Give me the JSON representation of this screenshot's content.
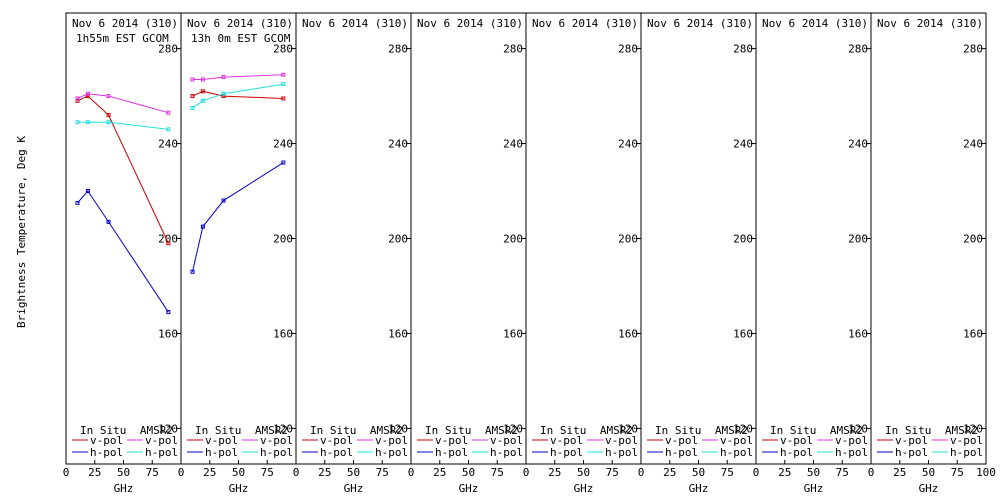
{
  "chart_data": {
    "type": "line",
    "ylabel": "Brightness Temperature, Deg K",
    "xlabel": "GHz",
    "xlim": [
      0,
      100
    ],
    "ylim": [
      105,
      295
    ],
    "x_ticks": [
      0,
      25,
      50,
      75
    ],
    "x_tick_last": "100",
    "y_ticks": [
      120,
      160,
      200,
      240,
      280
    ],
    "colors": {
      "insitu_v": "#cc0000",
      "insitu_h": "#0000cc",
      "amsr2_v": "#dd33dd",
      "amsr2_h": "#22dddd"
    },
    "legend_labels": {
      "insitu": "In Situ",
      "amsr2": "AMSR2",
      "vpol": "v-pol",
      "hpol": "h-pol"
    },
    "panels": [
      {
        "title": "Nov 6 2014 (310)",
        "subtitle": "1h55m EST GCOM",
        "series": [
          {
            "key": "insitu_v",
            "x": [
              10,
              19,
              37,
              89
            ],
            "y": [
              258,
              260,
              252,
              198
            ]
          },
          {
            "key": "insitu_h",
            "x": [
              10,
              19,
              37,
              89
            ],
            "y": [
              215,
              220,
              207,
              169
            ]
          },
          {
            "key": "amsr2_v",
            "x": [
              10,
              19,
              37,
              89
            ],
            "y": [
              259,
              261,
              260,
              253
            ]
          },
          {
            "key": "amsr2_h",
            "x": [
              10,
              19,
              37,
              89
            ],
            "y": [
              249,
              249,
              249,
              246
            ]
          }
        ]
      },
      {
        "title": "Nov 6 2014 (310)",
        "subtitle": "13h 0m EST GCOM",
        "series": [
          {
            "key": "insitu_v",
            "x": [
              10,
              19,
              37,
              89
            ],
            "y": [
              260,
              262,
              260,
              259
            ]
          },
          {
            "key": "insitu_h",
            "x": [
              10,
              19,
              37,
              89
            ],
            "y": [
              186,
              205,
              216,
              232
            ]
          },
          {
            "key": "amsr2_v",
            "x": [
              10,
              19,
              37,
              89
            ],
            "y": [
              267,
              267,
              268,
              269
            ]
          },
          {
            "key": "amsr2_h",
            "x": [
              10,
              19,
              37,
              89
            ],
            "y": [
              255,
              258,
              261,
              265
            ]
          }
        ]
      },
      {
        "title": "Nov 6 2014 (310)",
        "subtitle": "",
        "series": []
      },
      {
        "title": "Nov 6 2014 (310)",
        "subtitle": "",
        "series": []
      },
      {
        "title": "Nov 6 2014 (310)",
        "subtitle": "",
        "series": []
      },
      {
        "title": "Nov 6 2014 (310)",
        "subtitle": "",
        "series": []
      },
      {
        "title": "Nov 6 2014 (310)",
        "subtitle": "",
        "series": []
      },
      {
        "title": "Nov 6 2014 (310)",
        "subtitle": "",
        "series": []
      }
    ]
  }
}
